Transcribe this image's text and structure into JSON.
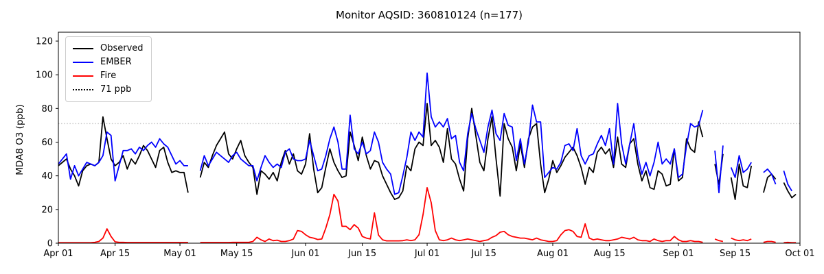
{
  "chart": {
    "title": "Monitor AQSID: 360810124 (n=177)",
    "ylabel": "MDA8 O3 (ppb)"
  },
  "chart_data": {
    "type": "line",
    "title": "Monitor AQSID: 360810124 (n=177)",
    "xlabel": "",
    "ylabel": "MDA8 O3 (ppb)",
    "x_unit": "day_index_from_Apr_01",
    "xlim_days": [
      0,
      183
    ],
    "ylim": [
      0,
      125.3
    ],
    "y_ticks": [
      0,
      20,
      40,
      60,
      80,
      100,
      120
    ],
    "x_ticks": [
      {
        "day": 0,
        "label": "Apr 01"
      },
      {
        "day": 14,
        "label": "Apr 15"
      },
      {
        "day": 30,
        "label": "May 01"
      },
      {
        "day": 44,
        "label": "May 15"
      },
      {
        "day": 61,
        "label": "Jun 01"
      },
      {
        "day": 75,
        "label": "Jun 15"
      },
      {
        "day": 91,
        "label": "Jul 01"
      },
      {
        "day": 105,
        "label": "Jul 15"
      },
      {
        "day": 122,
        "label": "Aug 01"
      },
      {
        "day": 136,
        "label": "Aug 15"
      },
      {
        "day": 153,
        "label": "Sep 01"
      },
      {
        "day": 167,
        "label": "Sep 15"
      },
      {
        "day": 183,
        "label": "Oct 01"
      }
    ],
    "threshold": {
      "value": 71,
      "label": "71 ppb",
      "color": "#c8c8c8",
      "style": "dotted"
    },
    "legend": {
      "position": "upper-left",
      "entries": [
        "Observed",
        "EMBER",
        "Fire",
        "71 ppb"
      ]
    },
    "series": [
      {
        "name": "Observed",
        "color": "#000000",
        "values": [
          46,
          48,
          50,
          44,
          40,
          34,
          43,
          46,
          47,
          46,
          48,
          75,
          62,
          50,
          46,
          48,
          52,
          44,
          50,
          47,
          52,
          58,
          55,
          50,
          45,
          55,
          57,
          48,
          42,
          43,
          42,
          42,
          30,
          null,
          null,
          39,
          48,
          45,
          52,
          58,
          62,
          66,
          53,
          50,
          56,
          61,
          52,
          48,
          45,
          29,
          43,
          41,
          38,
          42,
          37,
          48,
          55,
          47,
          53,
          43,
          41,
          47,
          65,
          44,
          30,
          33,
          45,
          56,
          48,
          43,
          39,
          40,
          66,
          58,
          49,
          63,
          52,
          44,
          49,
          48,
          40,
          35,
          30,
          26,
          27,
          31,
          46,
          43,
          56,
          60,
          58,
          83,
          58,
          61,
          57,
          48,
          68,
          50,
          47,
          38,
          31,
          62,
          80,
          64,
          48,
          43,
          62,
          75,
          50,
          28,
          71,
          62,
          57,
          43,
          59,
          45,
          62,
          69,
          71,
          47,
          30,
          38,
          49,
          42,
          46,
          51,
          54,
          57,
          52,
          45,
          35,
          45,
          42,
          54,
          57,
          53,
          56,
          45,
          63,
          47,
          45,
          59,
          62,
          47,
          37,
          43,
          33,
          32,
          43,
          41,
          34,
          35,
          56,
          37,
          39,
          62,
          56,
          54,
          72,
          63,
          null,
          null,
          47,
          35,
          53,
          null,
          39,
          26,
          47,
          34,
          33,
          46,
          null,
          null,
          30,
          39,
          41,
          38,
          null,
          36,
          31,
          27,
          29
        ]
      },
      {
        "name": "EMBER",
        "color": "#0000ff",
        "values": [
          47,
          50,
          53,
          38,
          46,
          40,
          44,
          48,
          47,
          46,
          48,
          52,
          66,
          64,
          37,
          46,
          55,
          55,
          56,
          53,
          57,
          55,
          58,
          60,
          57,
          62,
          59,
          57,
          52,
          47,
          49,
          46,
          46,
          null,
          null,
          43,
          52,
          46,
          50,
          54,
          52,
          50,
          48,
          52,
          54,
          50,
          48,
          46,
          46,
          37,
          45,
          52,
          48,
          45,
          47,
          45,
          54,
          56,
          50,
          49,
          49,
          50,
          61,
          52,
          43,
          44,
          52,
          62,
          69,
          60,
          44,
          44,
          76,
          56,
          53,
          60,
          53,
          55,
          66,
          60,
          48,
          44,
          41,
          29,
          30,
          40,
          51,
          66,
          61,
          66,
          63,
          101,
          75,
          69,
          72,
          69,
          74,
          62,
          64,
          48,
          43,
          65,
          77,
          68,
          61,
          54,
          69,
          79,
          65,
          61,
          77,
          70,
          69,
          49,
          62,
          47,
          60,
          82,
          72,
          72,
          39,
          42,
          45,
          44,
          48,
          58,
          59,
          55,
          68,
          52,
          47,
          52,
          53,
          59,
          64,
          58,
          68,
          47,
          83,
          59,
          47,
          59,
          71,
          52,
          41,
          48,
          40,
          48,
          60,
          47,
          50,
          47,
          56,
          39,
          41,
          58,
          71,
          69,
          70,
          79,
          null,
          null,
          55,
          30,
          58,
          null,
          45,
          39,
          52,
          42,
          44,
          48,
          null,
          null,
          42,
          44,
          41,
          35,
          null,
          43,
          35,
          31,
          null
        ]
      },
      {
        "name": "Fire",
        "color": "#ff0000",
        "values": [
          0.3,
          0.3,
          0.3,
          0.3,
          0.3,
          0.3,
          0.3,
          0.3,
          0.3,
          0.5,
          1,
          3,
          8.5,
          4,
          0.8,
          0.5,
          0.5,
          0.4,
          0.4,
          0.4,
          0.4,
          0.4,
          0.4,
          0.4,
          0.4,
          0.4,
          0.4,
          0.4,
          0.4,
          0.4,
          0.4,
          0.4,
          0.4,
          null,
          null,
          0.4,
          0.4,
          0.4,
          0.4,
          0.4,
          0.4,
          0.4,
          0.4,
          0.5,
          0.5,
          0.5,
          0.5,
          0.5,
          1,
          3.5,
          2,
          1,
          2.5,
          1.5,
          1.8,
          1,
          1,
          1.5,
          2.5,
          7.5,
          7,
          5,
          3.5,
          3,
          2.2,
          2.5,
          9,
          17,
          29,
          25,
          10,
          10,
          8,
          11,
          9,
          4,
          3,
          2.5,
          18,
          4.8,
          2,
          1.4,
          1.4,
          1.4,
          1.4,
          1.5,
          2,
          1.5,
          2,
          5,
          17,
          33,
          24,
          7.5,
          2,
          1.5,
          2,
          3,
          2,
          1.5,
          2,
          2.5,
          2,
          1.5,
          1,
          1.5,
          2,
          3.5,
          4.5,
          6.5,
          7,
          5,
          4,
          3.5,
          3,
          3,
          2.5,
          2,
          3,
          2,
          1.5,
          1,
          1,
          1.5,
          5,
          7.5,
          8,
          7,
          4,
          3.5,
          11.5,
          3,
          2,
          2.5,
          2,
          1.5,
          1.5,
          2,
          2.5,
          3.5,
          3,
          2.5,
          3.5,
          2,
          1.5,
          1.5,
          1,
          2.5,
          1.5,
          1,
          1.5,
          1.5,
          4,
          2,
          1,
          1,
          1.5,
          1,
          1,
          0.5,
          null,
          null,
          2.5,
          1.5,
          1,
          null,
          3,
          2,
          1.5,
          2,
          1.5,
          2.5,
          null,
          null,
          0.5,
          1,
          1,
          0.5,
          null,
          0.3,
          0.5,
          0.3,
          0.3
        ]
      }
    ]
  }
}
